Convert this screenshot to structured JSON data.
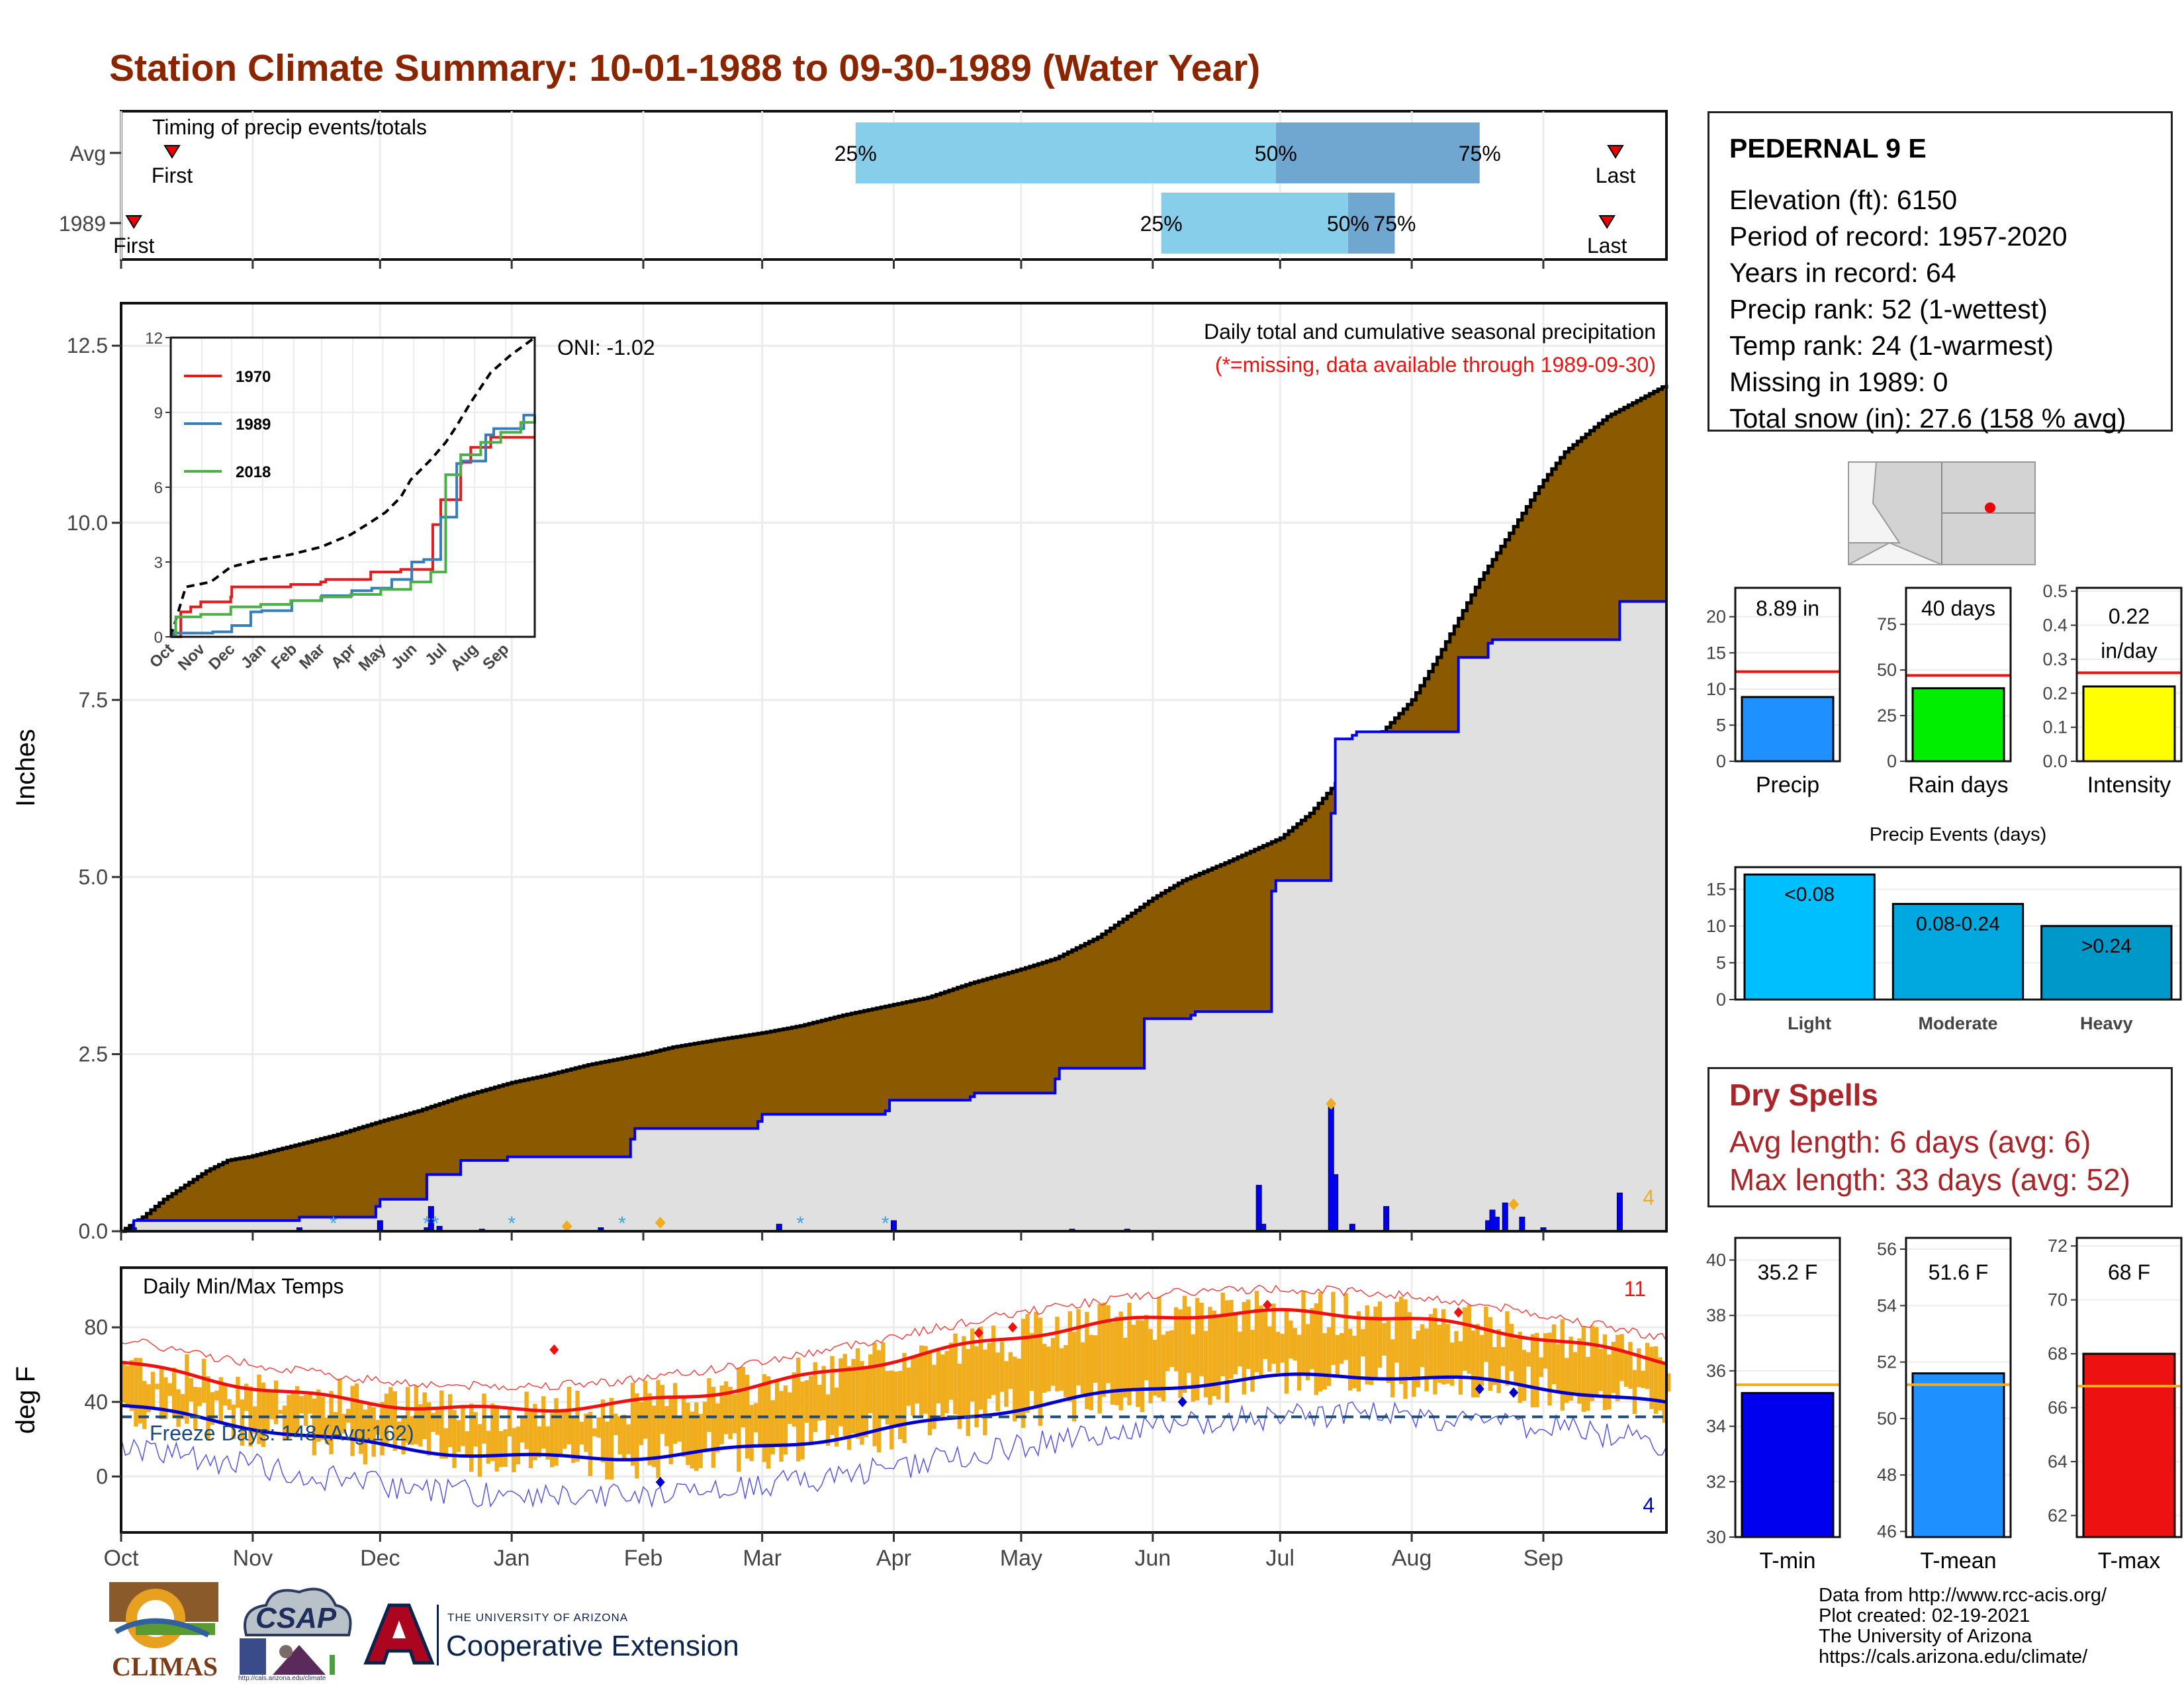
{
  "page": {
    "title": "Station Climate Summary: 10-01-1988 to 09-30-1989 (Water Year)"
  },
  "colors": {
    "title": "#8b2500",
    "brown": "#8b5a00",
    "grey": "#e0e0e0",
    "blue": "#0000ee",
    "orange": "#f0ad1e",
    "red": "#ee1111",
    "lightblue": "#87ceeb",
    "midblue": "#6fa7d1"
  },
  "timing": {
    "label": "Timing of precip events/totals",
    "rows": [
      {
        "name": "Avg",
        "first_day": 12,
        "last_day": 352,
        "p25_day": 173,
        "p50_day": 272,
        "p75_day": 320,
        "first_label": "First",
        "last_label": "Last",
        "p25_label": "25%",
        "p50_label": "50%",
        "p75_label": "75%"
      },
      {
        "name": "1989",
        "first_day": 3,
        "last_day": 350,
        "p25_day": 245,
        "p50_day": 289,
        "p75_day": 300,
        "first_label": "First",
        "last_label": "Last",
        "p25_label": "25%",
        "p50_label": "50%",
        "p75_label": "75%"
      }
    ]
  },
  "months": [
    "Oct",
    "Nov",
    "Dec",
    "Jan",
    "Feb",
    "Mar",
    "Apr",
    "May",
    "Jun",
    "Jul",
    "Aug",
    "Sep"
  ],
  "month_starts": [
    0,
    31,
    61,
    92,
    123,
    151,
    182,
    212,
    243,
    273,
    304,
    335
  ],
  "chart_data": [
    {
      "type": "area",
      "id": "precip",
      "title": "Daily total and cumulative seasonal precipitation",
      "subtitle": "(*=missing, data available through 1989-09-30)",
      "ylabel": "Inches",
      "ylim": [
        0,
        13.1
      ],
      "yticks": [
        "0.0",
        "2.5",
        "5.0",
        "7.5",
        "10.0",
        "12.5"
      ],
      "ytick_values": [
        0,
        2.5,
        5,
        7.5,
        10,
        12.5
      ],
      "oni_label": "ONI: -1.02",
      "corner_count": "4",
      "series": [
        {
          "name": "Avg cumulative",
          "x": [
            0,
            5,
            10,
            15,
            20,
            25,
            30,
            40,
            50,
            61,
            70,
            80,
            92,
            100,
            110,
            123,
            130,
            140,
            151,
            160,
            170,
            182,
            190,
            200,
            212,
            220,
            230,
            243,
            250,
            260,
            273,
            280,
            290,
            304,
            310,
            320,
            335,
            340,
            350,
            364
          ],
          "values": [
            0,
            0.2,
            0.45,
            0.65,
            0.85,
            1.0,
            1.05,
            1.2,
            1.35,
            1.55,
            1.7,
            1.9,
            2.1,
            2.2,
            2.35,
            2.5,
            2.6,
            2.7,
            2.8,
            2.9,
            3.05,
            3.2,
            3.3,
            3.5,
            3.7,
            3.85,
            4.15,
            4.7,
            4.95,
            5.2,
            5.55,
            5.9,
            6.6,
            7.5,
            8.1,
            9.2,
            10.6,
            11.0,
            11.5,
            11.95
          ]
        },
        {
          "name": "1989 cumulative",
          "x": [
            0,
            3,
            30,
            41,
            42,
            60,
            61,
            72,
            80,
            82,
            90,
            91,
            120,
            121,
            150,
            151,
            180,
            181,
            200,
            201,
            220,
            221,
            240,
            241,
            252,
            253,
            271,
            272,
            285,
            286,
            290,
            291,
            314,
            315,
            322,
            323,
            352,
            353,
            364
          ],
          "values": [
            0,
            0.15,
            0.15,
            0.15,
            0.2,
            0.35,
            0.45,
            0.8,
            1.0,
            1.0,
            1.0,
            1.05,
            1.3,
            1.45,
            1.55,
            1.65,
            1.7,
            1.85,
            1.9,
            1.95,
            2.15,
            2.3,
            2.3,
            3.0,
            3.05,
            3.1,
            4.8,
            4.95,
            5.9,
            6.95,
            7.0,
            7.05,
            7.05,
            8.1,
            8.3,
            8.35,
            8.35,
            8.89,
            8.89
          ]
        }
      ],
      "daily_bars": {
        "x": [
          3,
          42,
          61,
          72,
          73,
          75,
          85,
          113,
          155,
          182,
          224,
          237,
          268,
          269,
          285,
          286,
          290,
          298,
          322,
          323,
          324,
          326,
          330,
          335,
          353
        ],
        "values": [
          0.05,
          0.05,
          0.15,
          0.05,
          0.35,
          0.07,
          0.03,
          0.05,
          0.1,
          0.15,
          0.03,
          0.03,
          0.65,
          0.1,
          1.8,
          0.8,
          0.1,
          0.35,
          0.15,
          0.3,
          0.2,
          0.4,
          0.2,
          0.05,
          0.54
        ]
      },
      "snow_markers_x": [
        50,
        72,
        74,
        92,
        118,
        160,
        180
      ],
      "max_markers": [
        {
          "x": 105,
          "y": 0.07,
          "color": "orange"
        },
        {
          "x": 127,
          "y": 0.12,
          "color": "orange"
        },
        {
          "x": 285,
          "y": 1.8,
          "color": "orange"
        },
        {
          "x": 328,
          "y": 0.38,
          "color": "orange"
        }
      ],
      "inset": {
        "legend": [
          "1970",
          "1989",
          "2018"
        ],
        "legend_colors": [
          "#e41a1c",
          "#377eb8",
          "#4daf4a"
        ],
        "ylim": [
          0,
          12
        ],
        "yticks": [
          "0",
          "3",
          "6",
          "9",
          "12"
        ],
        "xticks": [
          "Oct",
          "Nov",
          "Dec",
          "Jan",
          "Feb",
          "Mar",
          "Apr",
          "May",
          "Jun",
          "Jul",
          "Aug",
          "Sep"
        ]
      }
    },
    {
      "type": "bar",
      "id": "temps",
      "title": "Daily Min/Max Temps",
      "ylabel": "deg F",
      "ylim": [
        -30,
        112
      ],
      "yticks": [
        "0",
        "40",
        "80"
      ],
      "ytick_values": [
        0,
        40,
        80
      ],
      "freeze_label": "Freeze Days: 148 (Avg:162)",
      "freeze_line": 32,
      "record_high_count": "11",
      "record_low_count": "4"
    },
    {
      "type": "bar",
      "id": "precip-bar",
      "categories": [
        "Precip"
      ],
      "values": [
        8.89
      ],
      "avg": 12.4,
      "ylim": [
        0,
        24
      ],
      "yticks": [
        "0",
        "5",
        "10",
        "15",
        "20"
      ],
      "label": "8.89 in"
    },
    {
      "type": "bar",
      "id": "raindays-bar",
      "categories": [
        "Rain days"
      ],
      "values": [
        40
      ],
      "avg": 47,
      "ylim": [
        0,
        95
      ],
      "yticks": [
        "0",
        "25",
        "50",
        "75"
      ],
      "label": "40 days"
    },
    {
      "type": "bar",
      "id": "intensity-bar",
      "categories": [
        "Intensity"
      ],
      "values": [
        0.22
      ],
      "avg": 0.26,
      "ylim": [
        0,
        0.51
      ],
      "yticks": [
        "0.0",
        "0.1",
        "0.2",
        "0.3",
        "0.4",
        "0.5"
      ],
      "label": "0.22",
      "label2": "in/day"
    },
    {
      "type": "bar",
      "id": "events-bar",
      "title": "Precip Events (days)",
      "categories": [
        "Light",
        "Moderate",
        "Heavy"
      ],
      "values": [
        17,
        13,
        10
      ],
      "bar_labels": [
        "<0.08",
        "0.08-0.24",
        ">0.24"
      ],
      "ylim": [
        0,
        18
      ],
      "yticks": [
        "0",
        "5",
        "10",
        "15"
      ]
    },
    {
      "type": "bar",
      "id": "tmin-bar",
      "categories": [
        "T-min"
      ],
      "values": [
        35.2
      ],
      "avg": 35.5,
      "ylim": [
        30,
        40.8
      ],
      "yticks": [
        "30",
        "32",
        "34",
        "36",
        "38",
        "40"
      ],
      "label": "35.2 F"
    },
    {
      "type": "bar",
      "id": "tmean-bar",
      "categories": [
        "T-mean"
      ],
      "values": [
        51.6
      ],
      "avg": 51.2,
      "ylim": [
        45.8,
        56.4
      ],
      "yticks": [
        "46",
        "48",
        "50",
        "52",
        "54",
        "56"
      ],
      "label": "51.6 F"
    },
    {
      "type": "bar",
      "id": "tmax-bar",
      "categories": [
        "T-max"
      ],
      "values": [
        68
      ],
      "avg": 66.8,
      "ylim": [
        61.2,
        72.3
      ],
      "yticks": [
        "62",
        "64",
        "66",
        "68",
        "70",
        "72"
      ],
      "label": "68 F"
    }
  ],
  "station": {
    "name": "PEDERNAL 9 E",
    "lines": [
      "Elevation (ft): 6150",
      "Period of record: 1957-2020",
      "Years in record: 64",
      "Precip rank: 52 (1-wettest)",
      "Temp rank: 24 (1-warmest)",
      "Missing in 1989: 0",
      "Total snow (in): 27.6 (158 % avg)"
    ]
  },
  "dry_spells": {
    "title": "Dry Spells",
    "avg_line": "Avg length: 6 days (avg: 6)",
    "max_line": "Max length: 33 days (avg: 52)"
  },
  "footer": {
    "lines": [
      "Data from http://www.rcc-acis.org/",
      "Plot created: 02-19-2021",
      "The University of Arizona",
      "https://cals.arizona.edu/climate/"
    ]
  },
  "logos": {
    "climas": "CLIMAS",
    "csap": "CSAP",
    "csap_url": "http://cals.arizona.edu/climate",
    "ua_small": "THE UNIVERSITY OF ARIZONA",
    "ua_big": "Cooperative Extension"
  }
}
